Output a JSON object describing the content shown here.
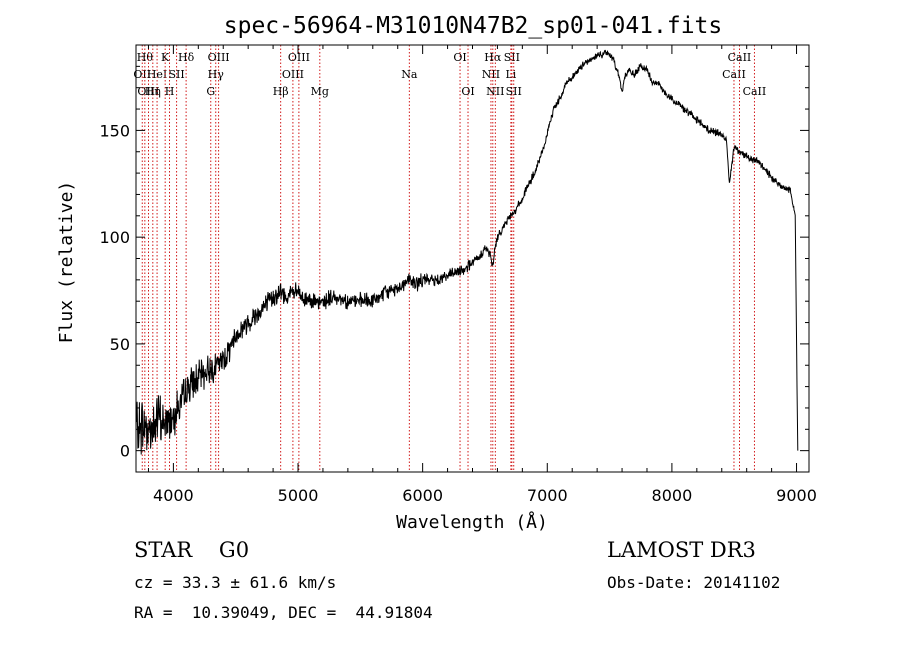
{
  "chart_data": {
    "type": "line",
    "title": "spec-56964-M31010N47B2_sp01-041.fits",
    "xlabel": "Wavelength (Å)",
    "ylabel": "Flux (relative)",
    "xlim": [
      3700,
      9100
    ],
    "ylim": [
      -10,
      190
    ],
    "x_ticks": [
      {
        "value": 4000,
        "label": "4000"
      },
      {
        "value": 5000,
        "label": "5000"
      },
      {
        "value": 6000,
        "label": "6000"
      },
      {
        "value": 7000,
        "label": "7000"
      },
      {
        "value": 8000,
        "label": "8000"
      },
      {
        "value": 9000,
        "label": "9000"
      }
    ],
    "y_ticks": [
      {
        "value": 0,
        "label": "0"
      },
      {
        "value": 50,
        "label": "50"
      },
      {
        "value": 100,
        "label": "100"
      },
      {
        "value": 150,
        "label": "150"
      }
    ],
    "grid": false,
    "series": [
      {
        "name": "flux",
        "noise_seed": 7,
        "x": [
          3700,
          3760,
          3820,
          3880,
          3940,
          4000,
          4060,
          4120,
          4200,
          4280,
          4350,
          4420,
          4500,
          4600,
          4700,
          4800,
          4860,
          4900,
          4950,
          5000,
          5050,
          5100,
          5150,
          5200,
          5300,
          5400,
          5500,
          5600,
          5700,
          5800,
          5890,
          5950,
          6000,
          6100,
          6200,
          6300,
          6400,
          6450,
          6500,
          6540,
          6563,
          6580,
          6600,
          6650,
          6700,
          6750,
          6800,
          6850,
          6900,
          6950,
          7000,
          7050,
          7100,
          7150,
          7200,
          7250,
          7300,
          7350,
          7400,
          7450,
          7500,
          7550,
          7580,
          7600,
          7620,
          7650,
          7700,
          7750,
          7800,
          7850,
          7900,
          7950,
          8000,
          8100,
          8200,
          8300,
          8400,
          8440,
          8460,
          8500,
          8540,
          8600,
          8660,
          8700,
          8800,
          8900,
          8950,
          8990,
          9000,
          9010
        ],
        "y": [
          10,
          12,
          10,
          15,
          12,
          18,
          22,
          30,
          34,
          38,
          40,
          44,
          54,
          60,
          66,
          72,
          74,
          72,
          74,
          74,
          70,
          72,
          68,
          70,
          72,
          70,
          70,
          70,
          74,
          76,
          80,
          78,
          80,
          80,
          82,
          84,
          88,
          90,
          95,
          92,
          86,
          95,
          100,
          105,
          110,
          113,
          118,
          125,
          130,
          138,
          148,
          160,
          165,
          172,
          175,
          178,
          182,
          183,
          185,
          186,
          186,
          180,
          175,
          168,
          175,
          178,
          176,
          180,
          178,
          172,
          172,
          167,
          165,
          160,
          155,
          150,
          148,
          145,
          125,
          143,
          140,
          138,
          136,
          135,
          128,
          123,
          122,
          110,
          50,
          0
        ],
        "noise": [
          [
            3700,
            10
          ],
          [
            3800,
            10
          ],
          [
            3950,
            9
          ],
          [
            4100,
            6
          ],
          [
            4300,
            5
          ],
          [
            4500,
            4
          ],
          [
            4800,
            3.5
          ],
          [
            5500,
            2.8
          ],
          [
            6200,
            2.2
          ],
          [
            6600,
            1.5
          ],
          [
            7000,
            1.4
          ],
          [
            8000,
            1.3
          ],
          [
            8600,
            1.3
          ],
          [
            8960,
            1.2
          ],
          [
            8990,
            0
          ]
        ]
      }
    ],
    "line_markers": [
      {
        "wavelength": 3750,
        "label": "OII",
        "row": 2
      },
      {
        "wavelength": 3771,
        "label": "Hθ",
        "row": 1
      },
      {
        "wavelength": 3800,
        "label": "OIII",
        "row": 3
      },
      {
        "wavelength": 3835,
        "label": "Hη",
        "row": 3
      },
      {
        "wavelength": 3869,
        "label": "HeI",
        "row": 2
      },
      {
        "wavelength": 3934,
        "label": "K",
        "row": 1
      },
      {
        "wavelength": 3969,
        "label": "H",
        "row": 3
      },
      {
        "wavelength": 4026,
        "label": "SII",
        "row": 2
      },
      {
        "wavelength": 4102,
        "label": "Hδ",
        "row": 1
      },
      {
        "wavelength": 4300,
        "label": "G",
        "row": 3
      },
      {
        "wavelength": 4340,
        "label": "Hγ",
        "row": 2
      },
      {
        "wavelength": 4363,
        "label": "OIII",
        "row": 1
      },
      {
        "wavelength": 4861,
        "label": "Hβ",
        "row": 3
      },
      {
        "wavelength": 4959,
        "label": "OIII",
        "row": 2
      },
      {
        "wavelength": 5007,
        "label": "OIII",
        "row": 1
      },
      {
        "wavelength": 5175,
        "label": "Mg",
        "row": 3
      },
      {
        "wavelength": 5893,
        "label": "Na",
        "row": 2
      },
      {
        "wavelength": 6300,
        "label": "OI",
        "row": 1
      },
      {
        "wavelength": 6364,
        "label": "OI",
        "row": 3
      },
      {
        "wavelength": 6548,
        "label": "NII",
        "row": 2
      },
      {
        "wavelength": 6563,
        "label": "Hα",
        "row": 1
      },
      {
        "wavelength": 6583,
        "label": "NII",
        "row": 3
      },
      {
        "wavelength": 6708,
        "label": "Li",
        "row": 2
      },
      {
        "wavelength": 6716,
        "label": "SII",
        "row": 1
      },
      {
        "wavelength": 6731,
        "label": "SII",
        "row": 3
      },
      {
        "wavelength": 8498,
        "label": "CaII",
        "row": 2
      },
      {
        "wavelength": 8542,
        "label": "CaII",
        "row": 1
      },
      {
        "wavelength": 8662,
        "label": "CaII",
        "row": 3
      }
    ],
    "colors": {
      "spectrum": "#000000",
      "marker": "#cc0000",
      "axes": "#000000"
    }
  },
  "info": {
    "class_text": "STAR    G0",
    "cz_text": "cz = 33.3 ± 61.6 km/s",
    "coords_text": "RA =  10.39049, DEC =  44.91804",
    "survey_text": "LAMOST DR3",
    "obsdate_text": "Obs-Date: 20141102"
  }
}
